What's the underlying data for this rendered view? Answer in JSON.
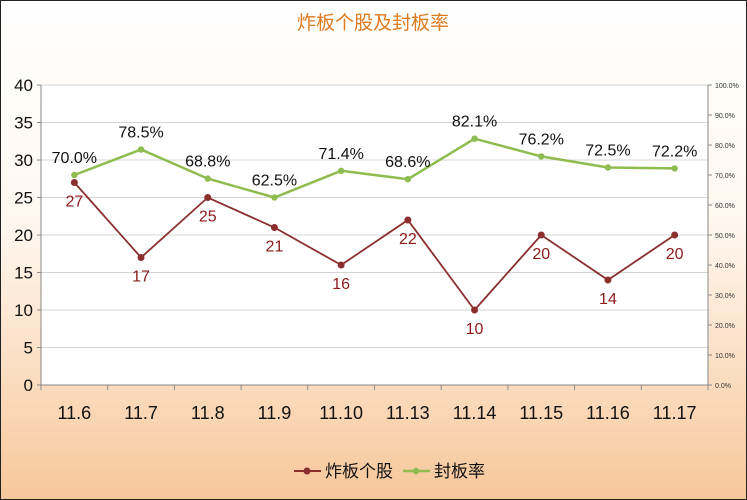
{
  "chart_data": {
    "type": "line",
    "title": "炸板个股及封板率",
    "categories": [
      "11.6",
      "11.7",
      "11.8",
      "11.9",
      "11.10",
      "11.13",
      "11.14",
      "11.15",
      "11.16",
      "11.17"
    ],
    "series": [
      {
        "name": "炸板个股",
        "axis": "left",
        "color": "#8b2e2e",
        "values": [
          27,
          17,
          25,
          21,
          16,
          22,
          10,
          20,
          14,
          20
        ],
        "labels": [
          "27",
          "17",
          "25",
          "21",
          "16",
          "22",
          "10",
          "20",
          "14",
          "20"
        ]
      },
      {
        "name": "封板率",
        "axis": "right",
        "color": "#8fbc4f",
        "values": [
          70.0,
          78.5,
          68.8,
          62.5,
          71.4,
          68.6,
          82.1,
          76.2,
          72.5,
          72.2
        ],
        "labels": [
          "70.0%",
          "78.5%",
          "68.8%",
          "62.5%",
          "71.4%",
          "68.6%",
          "82.1%",
          "76.2%",
          "72.5%",
          "72.2%"
        ]
      }
    ],
    "y_left": {
      "range": [
        0,
        40
      ],
      "ticks": [
        "0",
        "5",
        "10",
        "15",
        "20",
        "25",
        "30",
        "35",
        "40"
      ]
    },
    "y_right": {
      "range": [
        0,
        100
      ],
      "ticks": [
        "0.0%",
        "10.0%",
        "20.0%",
        "30.0%",
        "40.0%",
        "50.0%",
        "60.0%",
        "70.0%",
        "80.0%",
        "90.0%",
        "100.0%"
      ]
    },
    "grid": true,
    "legend_position": "bottom"
  }
}
